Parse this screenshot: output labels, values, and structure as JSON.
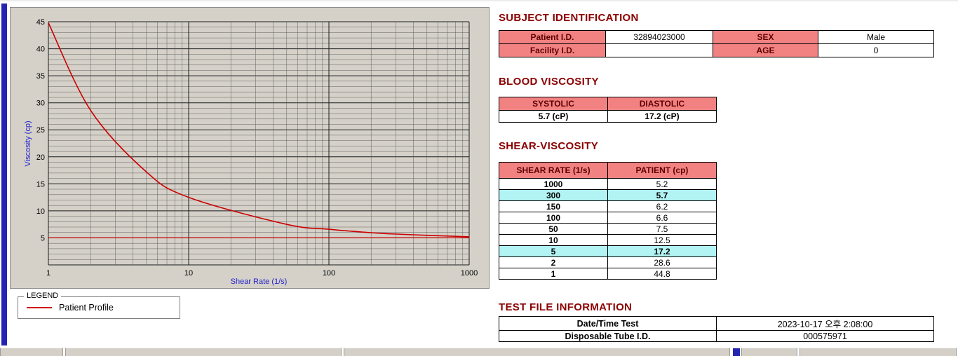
{
  "colors": {
    "section_title": "#8b0000",
    "table_header_bg": "#f28282",
    "highlight_bg": "#b2f4f4",
    "curve": "#cc0000",
    "axis_label": "#2222cc",
    "left_strip": "#2424b4"
  },
  "legend": {
    "title": "LEGEND",
    "series": "Patient Profile"
  },
  "subject": {
    "title": "SUBJECT IDENTIFICATION",
    "labels": {
      "patient_id": "Patient I.D.",
      "facility_id": "Facility I.D.",
      "sex": "SEX",
      "age": "AGE"
    },
    "values": {
      "patient_id": "32894023000",
      "facility_id": "",
      "sex": "Male",
      "age": "0"
    }
  },
  "blood_viscosity": {
    "title": "BLOOD VISCOSITY",
    "headers": [
      "SYSTOLIC",
      "DIASTOLIC"
    ],
    "values": [
      "5.7 (cP)",
      "17.2 (cP)"
    ]
  },
  "shear_viscosity": {
    "title": "SHEAR-VISCOSITY",
    "headers": [
      "SHEAR RATE (1/s)",
      "PATIENT (cp)"
    ],
    "rows": [
      {
        "rate": "1000",
        "value": "5.2",
        "highlight": false
      },
      {
        "rate": "300",
        "value": "5.7",
        "highlight": true
      },
      {
        "rate": "150",
        "value": "6.2",
        "highlight": false
      },
      {
        "rate": "100",
        "value": "6.6",
        "highlight": false
      },
      {
        "rate": "50",
        "value": "7.5",
        "highlight": false
      },
      {
        "rate": "10",
        "value": "12.5",
        "highlight": false
      },
      {
        "rate": "5",
        "value": "17.2",
        "highlight": true
      },
      {
        "rate": "2",
        "value": "28.6",
        "highlight": false
      },
      {
        "rate": "1",
        "value": "44.8",
        "highlight": false
      }
    ]
  },
  "test_file": {
    "title": "TEST FILE INFORMATION",
    "rows": [
      {
        "label": "Date/Time Test",
        "value": "2023-10-17   오후 2:08:00"
      },
      {
        "label": "Disposable Tube I.D.",
        "value": "000575971"
      }
    ]
  },
  "chart_data": {
    "type": "line",
    "x_scale": "log",
    "title": "",
    "xlabel": "Shear Rate (1/s)",
    "ylabel": "Viscosity (cp)",
    "xlim": [
      1,
      1000
    ],
    "ylim": [
      0,
      45
    ],
    "xticks": [
      1,
      10,
      100,
      1000
    ],
    "yticks": [
      5,
      10,
      15,
      20,
      25,
      30,
      35,
      40,
      45
    ],
    "grid": true,
    "x": [
      1,
      2,
      5,
      10,
      50,
      100,
      150,
      300,
      1000
    ],
    "series": [
      {
        "name": "Patient Profile",
        "color": "#cc0000",
        "values": [
          44.8,
          28.6,
          17.2,
          12.5,
          7.5,
          6.6,
          6.2,
          5.7,
          5.2
        ]
      },
      {
        "name": "baseline",
        "color": "#cc0000",
        "constant": 5.0
      }
    ]
  }
}
